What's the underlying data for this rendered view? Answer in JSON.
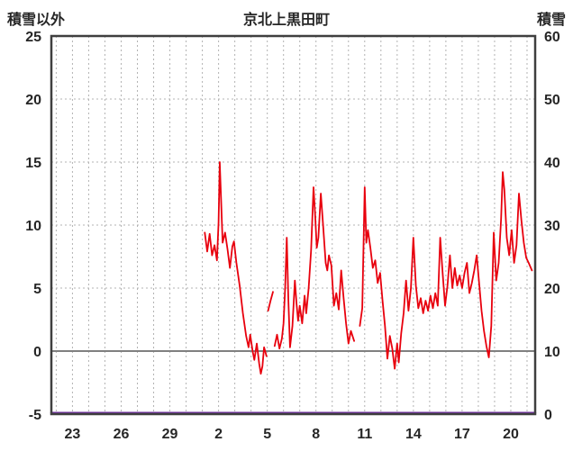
{
  "chart_data": {
    "type": "line",
    "title": "京北上黒田町",
    "left_axis": {
      "label": "積雪以外",
      "min": -5,
      "max": 25,
      "ticks": [
        -5,
        0,
        5,
        10,
        15,
        20,
        25
      ]
    },
    "right_axis": {
      "label": "積雪",
      "min": 0,
      "max": 60,
      "ticks": [
        0,
        10,
        20,
        30,
        40,
        50,
        60
      ]
    },
    "x_axis": {
      "min": -1.3,
      "max": 28.5,
      "tick_labels": [
        "23",
        "26",
        "29",
        "2",
        "5",
        "8",
        "11",
        "14",
        "17",
        "20"
      ],
      "tick_positions": [
        0,
        3,
        6,
        9,
        12,
        15,
        18,
        21,
        24,
        27
      ],
      "day_grid_step": 1
    },
    "grid": true,
    "zero_line": {
      "axis": "left",
      "value": 0
    },
    "colors": {
      "temperature": "#e8000d",
      "snow": "#7030a0",
      "grid": "#b3b3b3",
      "zero": "#808080",
      "frame": "#3f3f3f",
      "text": "#262626"
    },
    "series": [
      {
        "name": "temperature",
        "axis": "left",
        "color_key": "temperature",
        "segments": [
          [
            [
              8.15,
              9.4
            ],
            [
              8.3,
              7.9
            ],
            [
              8.45,
              9.3
            ],
            [
              8.6,
              7.6
            ],
            [
              8.75,
              8.4
            ],
            [
              8.9,
              7.2
            ],
            [
              9.0,
              10.2
            ],
            [
              9.07,
              15.0
            ],
            [
              9.15,
              12.2
            ],
            [
              9.25,
              8.6
            ],
            [
              9.4,
              9.4
            ],
            [
              9.55,
              8.1
            ],
            [
              9.7,
              6.6
            ],
            [
              9.85,
              8.3
            ],
            [
              9.95,
              8.7
            ],
            [
              10.1,
              7.0
            ],
            [
              10.3,
              5.2
            ],
            [
              10.5,
              3.0
            ],
            [
              10.7,
              1.2
            ],
            [
              10.85,
              0.3
            ],
            [
              10.95,
              1.3
            ],
            [
              11.1,
              0.0
            ],
            [
              11.2,
              -0.7
            ],
            [
              11.35,
              0.6
            ],
            [
              11.5,
              -1.0
            ],
            [
              11.6,
              -1.8
            ],
            [
              11.7,
              -1.2
            ],
            [
              11.8,
              0.3
            ],
            [
              11.95,
              -0.4
            ]
          ],
          [
            [
              12.05,
              3.2
            ],
            [
              12.2,
              4.0
            ],
            [
              12.35,
              4.7
            ]
          ],
          [
            [
              12.45,
              0.4
            ],
            [
              12.6,
              1.3
            ],
            [
              12.75,
              0.2
            ],
            [
              12.9,
              1.0
            ],
            [
              13.0,
              2.2
            ],
            [
              13.1,
              5.0
            ],
            [
              13.2,
              9.0
            ],
            [
              13.3,
              4.0
            ],
            [
              13.4,
              0.3
            ],
            [
              13.55,
              2.0
            ],
            [
              13.7,
              5.6
            ],
            [
              13.8,
              3.8
            ],
            [
              13.9,
              2.4
            ],
            [
              14.0,
              3.6
            ],
            [
              14.15,
              2.2
            ],
            [
              14.3,
              4.4
            ],
            [
              14.4,
              3.0
            ],
            [
              14.55,
              5.0
            ],
            [
              14.7,
              8.0
            ],
            [
              14.85,
              13.0
            ],
            [
              14.95,
              10.8
            ],
            [
              15.05,
              8.2
            ],
            [
              15.15,
              9.0
            ],
            [
              15.3,
              12.5
            ],
            [
              15.45,
              9.8
            ],
            [
              15.6,
              7.0
            ],
            [
              15.7,
              6.4
            ],
            [
              15.8,
              7.6
            ],
            [
              15.95,
              6.8
            ],
            [
              16.1,
              3.6
            ],
            [
              16.25,
              4.6
            ],
            [
              16.4,
              3.3
            ],
            [
              16.55,
              6.4
            ],
            [
              16.7,
              4.2
            ],
            [
              16.85,
              2.2
            ],
            [
              17.0,
              0.6
            ],
            [
              17.15,
              1.6
            ],
            [
              17.35,
              0.8
            ]
          ],
          [
            [
              17.7,
              2.0
            ],
            [
              17.85,
              3.4
            ],
            [
              18.0,
              13.0
            ],
            [
              18.1,
              8.6
            ],
            [
              18.2,
              9.6
            ],
            [
              18.35,
              8.2
            ],
            [
              18.5,
              6.6
            ],
            [
              18.65,
              7.2
            ],
            [
              18.8,
              5.4
            ],
            [
              18.95,
              6.2
            ],
            [
              19.1,
              4.0
            ],
            [
              19.25,
              2.0
            ],
            [
              19.4,
              -0.6
            ],
            [
              19.55,
              1.2
            ],
            [
              19.7,
              0.2
            ],
            [
              19.85,
              -1.4
            ],
            [
              20.0,
              0.6
            ],
            [
              20.1,
              -0.9
            ],
            [
              20.25,
              1.4
            ],
            [
              20.4,
              3.0
            ],
            [
              20.55,
              5.6
            ],
            [
              20.7,
              3.2
            ],
            [
              20.85,
              5.0
            ],
            [
              21.0,
              9.0
            ],
            [
              21.15,
              5.2
            ],
            [
              21.3,
              3.4
            ],
            [
              21.45,
              4.2
            ],
            [
              21.6,
              3.0
            ],
            [
              21.75,
              4.0
            ],
            [
              21.9,
              3.2
            ],
            [
              22.05,
              4.4
            ],
            [
              22.2,
              3.4
            ],
            [
              22.35,
              4.6
            ],
            [
              22.5,
              3.6
            ],
            [
              22.65,
              9.0
            ],
            [
              22.8,
              6.2
            ],
            [
              22.95,
              3.6
            ],
            [
              23.1,
              5.2
            ],
            [
              23.25,
              7.6
            ],
            [
              23.4,
              5.0
            ],
            [
              23.55,
              6.6
            ],
            [
              23.7,
              5.2
            ],
            [
              23.85,
              6.0
            ],
            [
              24.0,
              5.0
            ],
            [
              24.15,
              6.2
            ],
            [
              24.3,
              7.0
            ],
            [
              24.45,
              4.6
            ],
            [
              24.6,
              5.4
            ],
            [
              24.75,
              6.4
            ],
            [
              24.9,
              7.6
            ],
            [
              25.05,
              5.4
            ],
            [
              25.2,
              3.2
            ],
            [
              25.35,
              1.6
            ],
            [
              25.5,
              0.4
            ],
            [
              25.65,
              -0.5
            ],
            [
              25.8,
              2.0
            ],
            [
              25.95,
              9.4
            ],
            [
              26.1,
              5.6
            ],
            [
              26.25,
              7.0
            ],
            [
              26.4,
              10.5
            ],
            [
              26.5,
              14.2
            ],
            [
              26.6,
              12.8
            ],
            [
              26.75,
              9.0
            ],
            [
              26.9,
              7.6
            ],
            [
              27.05,
              9.6
            ],
            [
              27.2,
              7.0
            ],
            [
              27.35,
              8.4
            ],
            [
              27.5,
              12.5
            ],
            [
              27.65,
              10.4
            ],
            [
              27.8,
              8.6
            ],
            [
              27.95,
              7.4
            ],
            [
              28.1,
              7.0
            ],
            [
              28.3,
              6.4
            ]
          ]
        ]
      },
      {
        "name": "snow-depth",
        "axis": "right",
        "color_key": "snow",
        "segments": [
          [
            [
              -1.3,
              0
            ],
            [
              28.5,
              0
            ]
          ]
        ]
      }
    ]
  }
}
